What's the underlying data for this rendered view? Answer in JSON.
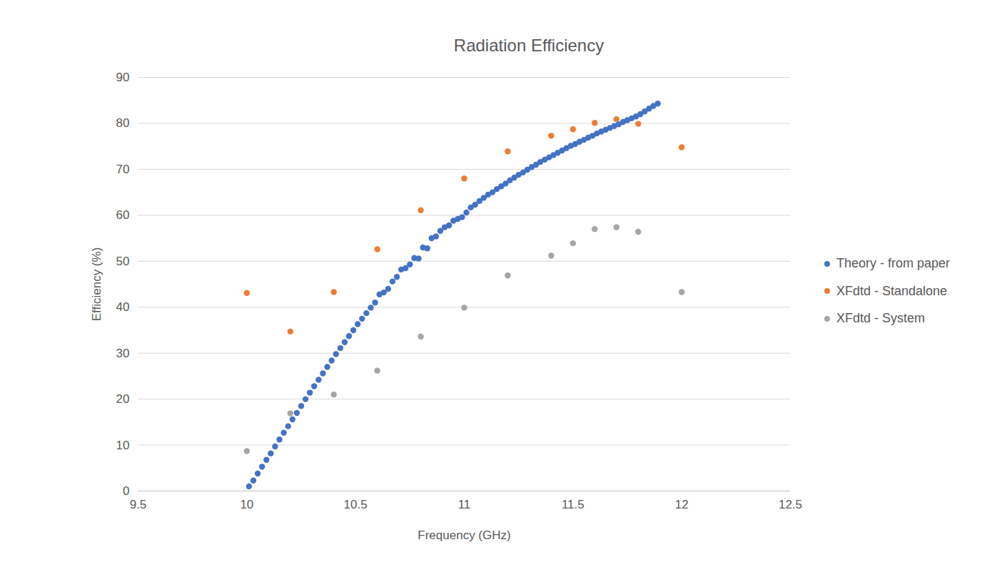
{
  "chart_data": {
    "type": "scatter",
    "title": "Radiation Efficiency",
    "xlabel": "Frequency (GHz)",
    "ylabel": "Efficiency (%)",
    "xlim": [
      9.5,
      12.5
    ],
    "xticks": [
      9.5,
      10,
      10.5,
      11,
      11.5,
      12,
      12.5
    ],
    "ylim": [
      0,
      90
    ],
    "yticks": [
      0,
      10,
      20,
      30,
      40,
      50,
      60,
      70,
      80,
      90
    ],
    "grid": true,
    "legend": "right",
    "marker": "circle",
    "series": [
      {
        "name": "Theory - from paper",
        "color": "#4472c4",
        "x": [
          10.01,
          10.03,
          10.05,
          10.07,
          10.09,
          10.11,
          10.13,
          10.15,
          10.17,
          10.19,
          10.21,
          10.23,
          10.25,
          10.27,
          10.29,
          10.31,
          10.33,
          10.35,
          10.37,
          10.39,
          10.41,
          10.43,
          10.45,
          10.47,
          10.49,
          10.51,
          10.53,
          10.55,
          10.57,
          10.59,
          10.61,
          10.63,
          10.65,
          10.67,
          10.69,
          10.71,
          10.73,
          10.75,
          10.77,
          10.79,
          10.81,
          10.83,
          10.85,
          10.87,
          10.89,
          10.91,
          10.93,
          10.95,
          10.97,
          10.99,
          11.01,
          11.03,
          11.05,
          11.07,
          11.09,
          11.11,
          11.13,
          11.15,
          11.17,
          11.19,
          11.21,
          11.23,
          11.25,
          11.27,
          11.29,
          11.31,
          11.33,
          11.35,
          11.37,
          11.39,
          11.41,
          11.43,
          11.45,
          11.47,
          11.49,
          11.51,
          11.53,
          11.55,
          11.57,
          11.59,
          11.61,
          11.63,
          11.65,
          11.67,
          11.69,
          11.71,
          11.73,
          11.75,
          11.77,
          11.79,
          11.81,
          11.83,
          11.85,
          11.87,
          11.89
        ],
        "values": [
          1.0,
          2.3,
          3.8,
          5.3,
          6.8,
          8.2,
          9.7,
          11.2,
          12.7,
          14.1,
          15.6,
          17.0,
          18.5,
          20.0,
          21.4,
          22.8,
          24.2,
          25.6,
          27.0,
          28.4,
          29.8,
          31.1,
          32.4,
          33.7,
          35.0,
          36.3,
          37.5,
          38.7,
          39.9,
          41.0,
          42.8,
          43.2,
          44.0,
          45.6,
          46.6,
          48.2,
          48.5,
          49.3,
          50.7,
          50.6,
          53.0,
          52.8,
          55.0,
          55.4,
          56.6,
          57.4,
          57.8,
          58.8,
          59.2,
          59.6,
          60.6,
          61.7,
          62.3,
          63.1,
          63.8,
          64.5,
          65.0,
          65.7,
          66.3,
          66.9,
          67.6,
          68.2,
          68.8,
          69.3,
          69.9,
          70.5,
          71.0,
          71.6,
          72.1,
          72.6,
          73.1,
          73.6,
          74.1,
          74.6,
          75.1,
          75.5,
          76.0,
          76.4,
          76.9,
          77.3,
          77.8,
          78.2,
          78.6,
          79.0,
          79.4,
          79.8,
          80.3,
          80.7,
          81.1,
          81.5,
          82.0,
          82.6,
          83.2,
          83.8,
          84.3
        ]
      },
      {
        "name": "XFdtd - Standalone",
        "color": "#ed7d31",
        "x": [
          10,
          10.2,
          10.4,
          10.6,
          10.8,
          11,
          11.2,
          11.4,
          11.5,
          11.6,
          11.7,
          11.8,
          12
        ],
        "values": [
          43.1,
          34.7,
          43.3,
          52.6,
          61.1,
          68.0,
          73.9,
          77.3,
          78.7,
          80.1,
          80.9,
          79.9,
          74.8
        ]
      },
      {
        "name": "XFdtd - System",
        "color": "#a5a5a5",
        "x": [
          10,
          10.2,
          10.4,
          10.6,
          10.8,
          11,
          11.2,
          11.4,
          11.5,
          11.6,
          11.7,
          11.8,
          12
        ],
        "values": [
          8.7,
          16.9,
          21.0,
          26.2,
          33.6,
          39.9,
          46.9,
          51.2,
          53.9,
          57.0,
          57.4,
          56.4,
          43.3
        ]
      }
    ]
  }
}
